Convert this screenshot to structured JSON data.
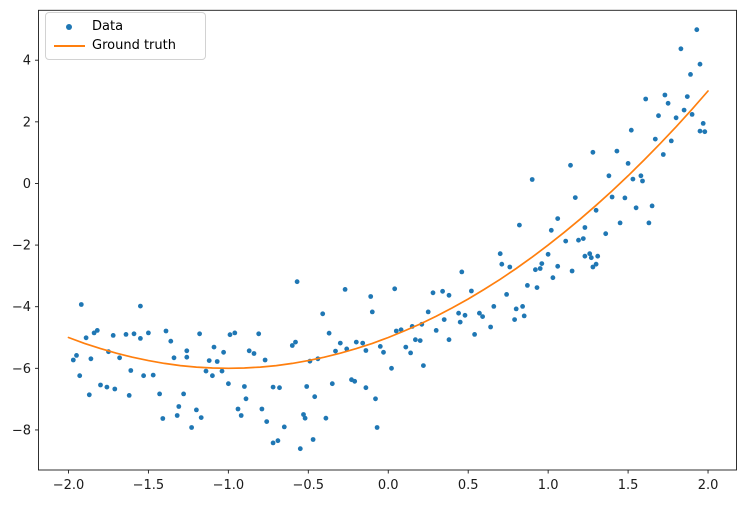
{
  "chart_data": {
    "type": "scatter",
    "title": "",
    "xlabel": "",
    "ylabel": "",
    "grid": false,
    "xlim": [
      -2.1875,
      2.178
    ],
    "ylim": [
      -9.3,
      5.62
    ],
    "x_ticks": [
      -2.0,
      -1.5,
      -1.0,
      -0.5,
      0.0,
      0.5,
      1.0,
      1.5,
      2.0
    ],
    "x_tick_labels": [
      "−2.0",
      "−1.5",
      "−1.0",
      "−0.5",
      "0.0",
      "0.5",
      "1.0",
      "1.5",
      "2.0"
    ],
    "y_ticks": [
      -8,
      -6,
      -4,
      -2,
      0,
      2,
      4
    ],
    "y_tick_labels": [
      "−8",
      "−6",
      "−4",
      "−2",
      "0",
      "2",
      "4"
    ],
    "axis_color": "#1a1a1a",
    "legend": {
      "position": "upper-left",
      "items": [
        {
          "label": "Data",
          "marker": "dot",
          "color": "#1f77b4"
        },
        {
          "label": "Ground truth",
          "marker": "line",
          "color": "#ff7f0e"
        }
      ]
    },
    "series": [
      {
        "name": "Data",
        "type": "scatter",
        "color": "#1f77b4",
        "marker_radius": 2.4,
        "points": [
          [
            -1.97,
            -5.73
          ],
          [
            -1.95,
            -5.58
          ],
          [
            -1.93,
            -6.24
          ],
          [
            -1.92,
            -3.93
          ],
          [
            -1.89,
            -5.01
          ],
          [
            -1.87,
            -6.86
          ],
          [
            -1.86,
            -5.69
          ],
          [
            -1.84,
            -4.85
          ],
          [
            -1.82,
            -4.77
          ],
          [
            -1.8,
            -6.54
          ],
          [
            -1.76,
            -6.61
          ],
          [
            -1.75,
            -5.46
          ],
          [
            -1.72,
            -4.93
          ],
          [
            -1.71,
            -6.67
          ],
          [
            -1.68,
            -5.66
          ],
          [
            -1.64,
            -4.9
          ],
          [
            -1.62,
            -6.88
          ],
          [
            -1.61,
            -6.07
          ],
          [
            -1.59,
            -4.88
          ],
          [
            -1.55,
            -3.98
          ],
          [
            -1.55,
            -5.03
          ],
          [
            -1.53,
            -6.24
          ],
          [
            -1.5,
            -4.85
          ],
          [
            -1.47,
            -6.22
          ],
          [
            -1.43,
            -6.83
          ],
          [
            -1.41,
            -7.63
          ],
          [
            -1.39,
            -4.79
          ],
          [
            -1.36,
            -5.12
          ],
          [
            -1.34,
            -5.66
          ],
          [
            -1.32,
            -7.53
          ],
          [
            -1.31,
            -7.24
          ],
          [
            -1.28,
            -6.83
          ],
          [
            -1.26,
            -5.64
          ],
          [
            -1.26,
            -5.43
          ],
          [
            -1.23,
            -7.92
          ],
          [
            -1.2,
            -7.35
          ],
          [
            -1.18,
            -4.88
          ],
          [
            -1.17,
            -7.6
          ],
          [
            -1.14,
            -6.09
          ],
          [
            -1.12,
            -5.75
          ],
          [
            -1.1,
            -6.24
          ],
          [
            -1.09,
            -5.31
          ],
          [
            -1.07,
            -5.78
          ],
          [
            -1.04,
            -6.09
          ],
          [
            -1.03,
            -5.48
          ],
          [
            -1.0,
            -6.5
          ],
          [
            -0.99,
            -4.91
          ],
          [
            -0.96,
            -4.85
          ],
          [
            -0.94,
            -7.32
          ],
          [
            -0.92,
            -7.53
          ],
          [
            -0.9,
            -6.59
          ],
          [
            -0.89,
            -6.99
          ],
          [
            -0.87,
            -5.43
          ],
          [
            -0.84,
            -5.52
          ],
          [
            -0.81,
            -4.88
          ],
          [
            -0.79,
            -7.32
          ],
          [
            -0.77,
            -5.73
          ],
          [
            -0.76,
            -7.73
          ],
          [
            -0.72,
            -6.61
          ],
          [
            -0.72,
            -8.42
          ],
          [
            -0.69,
            -8.35
          ],
          [
            -0.68,
            -6.63
          ],
          [
            -0.65,
            -7.9
          ],
          [
            -0.6,
            -5.26
          ],
          [
            -0.58,
            -5.15
          ],
          [
            -0.57,
            -3.19
          ],
          [
            -0.55,
            -8.61
          ],
          [
            -0.52,
            -7.62
          ],
          [
            -0.49,
            -5.77
          ],
          [
            -0.47,
            -8.31
          ],
          [
            -0.46,
            -6.92
          ],
          [
            -0.53,
            -7.5
          ],
          [
            -0.51,
            -6.59
          ],
          [
            -0.44,
            -5.69
          ],
          [
            -0.41,
            -4.23
          ],
          [
            -0.39,
            -7.62
          ],
          [
            -0.37,
            -4.86
          ],
          [
            -0.35,
            -6.5
          ],
          [
            -0.33,
            -5.44
          ],
          [
            -0.3,
            -5.18
          ],
          [
            -0.27,
            -3.44
          ],
          [
            -0.26,
            -5.37
          ],
          [
            -0.23,
            -6.37
          ],
          [
            -0.21,
            -6.42
          ],
          [
            -0.2,
            -5.15
          ],
          [
            -0.16,
            -5.18
          ],
          [
            -0.14,
            -5.42
          ],
          [
            -0.14,
            -6.63
          ],
          [
            -0.11,
            -3.67
          ],
          [
            -0.1,
            -4.17
          ],
          [
            -0.08,
            -6.99
          ],
          [
            -0.07,
            -7.92
          ],
          [
            -0.05,
            -5.29
          ],
          [
            -0.03,
            -5.48
          ],
          [
            0.02,
            -6.0
          ],
          [
            0.04,
            -3.42
          ],
          [
            0.05,
            -4.79
          ],
          [
            0.08,
            -4.75
          ],
          [
            0.11,
            -5.31
          ],
          [
            0.14,
            -5.5
          ],
          [
            0.15,
            -4.64
          ],
          [
            0.17,
            -5.07
          ],
          [
            0.2,
            -5.1
          ],
          [
            0.21,
            -4.57
          ],
          [
            0.22,
            -5.91
          ],
          [
            0.25,
            -4.17
          ],
          [
            0.28,
            -3.55
          ],
          [
            0.3,
            -4.77
          ],
          [
            0.34,
            -3.5
          ],
          [
            0.35,
            -4.42
          ],
          [
            0.38,
            -3.63
          ],
          [
            0.38,
            -5.07
          ],
          [
            0.44,
            -4.21
          ],
          [
            0.45,
            -4.5
          ],
          [
            0.46,
            -2.87
          ],
          [
            0.48,
            -4.28
          ],
          [
            0.52,
            -3.49
          ],
          [
            0.54,
            -4.9
          ],
          [
            0.57,
            -4.21
          ],
          [
            0.59,
            -4.32
          ],
          [
            0.64,
            -4.66
          ],
          [
            0.66,
            -3.99
          ],
          [
            0.7,
            -2.28
          ],
          [
            0.71,
            -2.62
          ],
          [
            0.74,
            -3.6
          ],
          [
            0.76,
            -2.71
          ],
          [
            0.79,
            -4.42
          ],
          [
            0.8,
            -4.07
          ],
          [
            0.82,
            -1.35
          ],
          [
            0.84,
            -3.99
          ],
          [
            0.85,
            -4.3
          ],
          [
            0.87,
            -3.31
          ],
          [
            0.9,
            0.13
          ],
          [
            0.92,
            -2.8
          ],
          [
            0.93,
            -3.38
          ],
          [
            0.95,
            -2.76
          ],
          [
            0.96,
            -2.6
          ],
          [
            1.0,
            -2.3
          ],
          [
            1.02,
            -1.52
          ],
          [
            1.03,
            -3.06
          ],
          [
            1.06,
            -1.14
          ],
          [
            1.06,
            -2.69
          ],
          [
            1.11,
            -1.87
          ],
          [
            1.14,
            0.59
          ],
          [
            1.15,
            -2.84
          ],
          [
            1.17,
            -0.46
          ],
          [
            1.19,
            -1.84
          ],
          [
            1.22,
            -1.79
          ],
          [
            1.23,
            -1.43
          ],
          [
            1.23,
            -2.36
          ],
          [
            1.26,
            -2.28
          ],
          [
            1.27,
            -2.41
          ],
          [
            1.28,
            1.01
          ],
          [
            1.28,
            -2.71
          ],
          [
            1.3,
            -0.87
          ],
          [
            1.3,
            -2.62
          ],
          [
            1.31,
            -2.36
          ],
          [
            1.36,
            -1.63
          ],
          [
            1.38,
            0.25
          ],
          [
            1.4,
            -0.44
          ],
          [
            1.43,
            1.05
          ],
          [
            1.45,
            -1.28
          ],
          [
            1.48,
            -0.47
          ],
          [
            1.5,
            0.65
          ],
          [
            1.52,
            1.73
          ],
          [
            1.53,
            0.14
          ],
          [
            1.55,
            -0.79
          ],
          [
            1.58,
            0.25
          ],
          [
            1.59,
            0.08
          ],
          [
            1.61,
            2.74
          ],
          [
            1.63,
            -1.28
          ],
          [
            1.65,
            -0.73
          ],
          [
            1.67,
            1.44
          ],
          [
            1.69,
            2.2
          ],
          [
            1.72,
            0.94
          ],
          [
            1.73,
            2.87
          ],
          [
            1.75,
            2.6
          ],
          [
            1.77,
            1.38
          ],
          [
            1.8,
            2.13
          ],
          [
            1.83,
            4.37
          ],
          [
            1.85,
            2.38
          ],
          [
            1.87,
            2.82
          ],
          [
            1.89,
            3.54
          ],
          [
            1.9,
            2.24
          ],
          [
            1.93,
            4.99
          ],
          [
            1.95,
            1.7
          ],
          [
            1.95,
            3.87
          ],
          [
            1.97,
            1.95
          ],
          [
            1.98,
            1.68
          ]
        ]
      },
      {
        "name": "Ground truth",
        "type": "line",
        "color": "#ff7f0e",
        "line_width": 1.7,
        "formula": "y = x^2 + 2x - 5",
        "x_range": [
          -2,
          2
        ],
        "points": [
          [
            -2.0,
            -5.0
          ],
          [
            -1.9,
            -5.19
          ],
          [
            -1.8,
            -5.36
          ],
          [
            -1.7,
            -5.51
          ],
          [
            -1.6,
            -5.64
          ],
          [
            -1.5,
            -5.75
          ],
          [
            -1.4,
            -5.84
          ],
          [
            -1.3,
            -5.91
          ],
          [
            -1.2,
            -5.96
          ],
          [
            -1.1,
            -5.99
          ],
          [
            -1.0,
            -6.0
          ],
          [
            -0.9,
            -5.99
          ],
          [
            -0.8,
            -5.96
          ],
          [
            -0.7,
            -5.91
          ],
          [
            -0.6,
            -5.84
          ],
          [
            -0.5,
            -5.75
          ],
          [
            -0.4,
            -5.64
          ],
          [
            -0.3,
            -5.51
          ],
          [
            -0.2,
            -5.36
          ],
          [
            -0.1,
            -5.19
          ],
          [
            0.0,
            -5.0
          ],
          [
            0.1,
            -4.79
          ],
          [
            0.2,
            -4.56
          ],
          [
            0.3,
            -4.31
          ],
          [
            0.4,
            -4.04
          ],
          [
            0.5,
            -3.75
          ],
          [
            0.6,
            -3.44
          ],
          [
            0.7,
            -3.11
          ],
          [
            0.8,
            -2.76
          ],
          [
            0.9,
            -2.39
          ],
          [
            1.0,
            -2.0
          ],
          [
            1.1,
            -1.59
          ],
          [
            1.2,
            -1.16
          ],
          [
            1.3,
            -0.71
          ],
          [
            1.4,
            -0.24
          ],
          [
            1.5,
            0.25
          ],
          [
            1.6,
            0.76
          ],
          [
            1.7,
            1.29
          ],
          [
            1.8,
            1.84
          ],
          [
            1.9,
            2.41
          ],
          [
            2.0,
            3.0
          ]
        ]
      }
    ]
  }
}
